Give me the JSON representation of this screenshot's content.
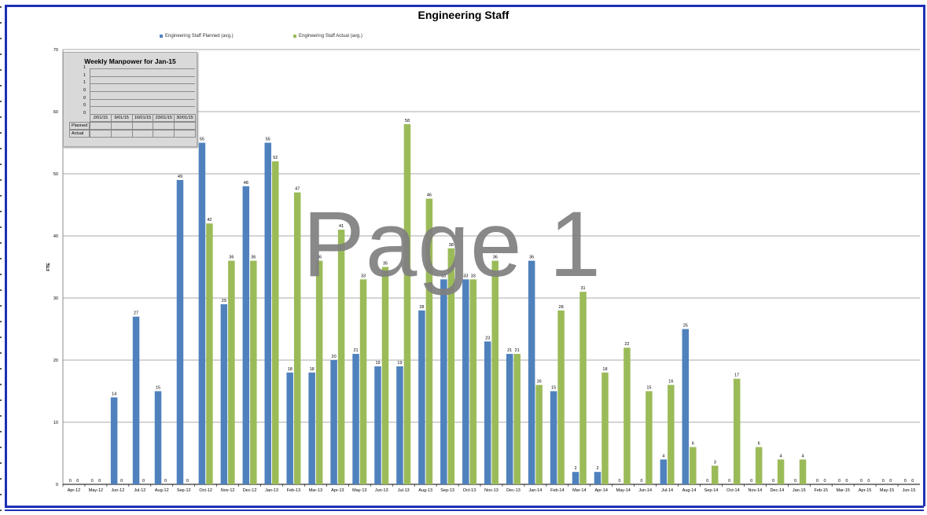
{
  "colors": {
    "planned": "#4f81bd",
    "actual": "#9bbb59",
    "frame": "#1d2fb5",
    "grid": "#8c8c8c"
  },
  "watermark": "Page 1",
  "inset": {
    "title": "Weekly Manpower for Jan-15",
    "y_ticks": [
      "1",
      "1",
      "1",
      "0",
      "0",
      "0",
      "0"
    ],
    "columns": [
      "2/01/15",
      "9/01/15",
      "16/01/15",
      "23/01/15",
      "30/01/15"
    ],
    "rows": [
      "Planned",
      "Actual"
    ]
  },
  "chart_data": {
    "type": "bar",
    "title": "Engineering Staff",
    "xlabel": "",
    "ylabel": "FTE",
    "ylim": [
      0,
      70
    ],
    "y_ticks": [
      0,
      10,
      20,
      30,
      40,
      50,
      60,
      70
    ],
    "grid": true,
    "legend_position": "top",
    "categories": [
      "Apr-12",
      "May-12",
      "Jun-12",
      "Jul-12",
      "Aug-12",
      "Sep-12",
      "Oct-12",
      "Nov-12",
      "Dec-12",
      "Jan-13",
      "Feb-13",
      "Mar-13",
      "Apr-13",
      "May-13",
      "Jun-13",
      "Jul-13",
      "Aug-13",
      "Sep-13",
      "Oct-13",
      "Nov-13",
      "Dec-13",
      "Jan-14",
      "Feb-14",
      "Mar-14",
      "Apr-14",
      "May-14",
      "Jun-14",
      "Jul-14",
      "Aug-14",
      "Sep-14",
      "Oct-14",
      "Nov-14",
      "Dec-14",
      "Jan-15",
      "Feb-15",
      "Mar-15",
      "Apr-15",
      "May-15",
      "Jun-15"
    ],
    "series": [
      {
        "name": "Engineering Staff Planned (avg.)",
        "values": [
          0,
          0,
          14,
          27,
          15,
          49,
          55,
          29,
          48,
          55,
          18,
          18,
          20,
          21,
          19,
          19,
          28,
          33,
          33,
          23,
          21,
          36,
          15,
          2,
          2,
          0,
          0,
          4,
          25,
          0,
          0,
          0,
          0,
          0,
          0,
          0,
          0,
          0,
          0
        ],
        "labels": [
          "0",
          "0",
          "14",
          "27",
          "15",
          "49",
          "55",
          "29",
          "48",
          "55",
          "18",
          "18",
          "20",
          "21",
          "19",
          "19",
          "28",
          "33",
          "33",
          "23",
          "21",
          "36",
          "15",
          "2",
          "2",
          "0",
          "0",
          "4",
          "25",
          "0",
          "0",
          "0",
          "0",
          "0",
          "0",
          "0",
          "0",
          "0",
          "0"
        ]
      },
      {
        "name": "Engineering Staff Actual (avg.)",
        "values": [
          0,
          0,
          0,
          0,
          0,
          0,
          42,
          36,
          36,
          52,
          47,
          36,
          41,
          33,
          35,
          58,
          46,
          38,
          33,
          36,
          21,
          16,
          28,
          31,
          18,
          22,
          15,
          16,
          6,
          3,
          17,
          6,
          4,
          4,
          0,
          0,
          0,
          0,
          0
        ],
        "labels": [
          "0",
          "0",
          "0",
          "0",
          "0",
          "0",
          "42",
          "36",
          "36",
          "52",
          "47",
          "36",
          "41",
          "33",
          "35",
          "58",
          "46",
          "38",
          "33",
          "36",
          "21",
          "16",
          "28",
          "31",
          "18",
          "22",
          "15",
          "16",
          "6",
          "3",
          "17",
          "6",
          "4",
          "4",
          "0",
          "0",
          "0",
          "0",
          "0"
        ]
      }
    ]
  }
}
